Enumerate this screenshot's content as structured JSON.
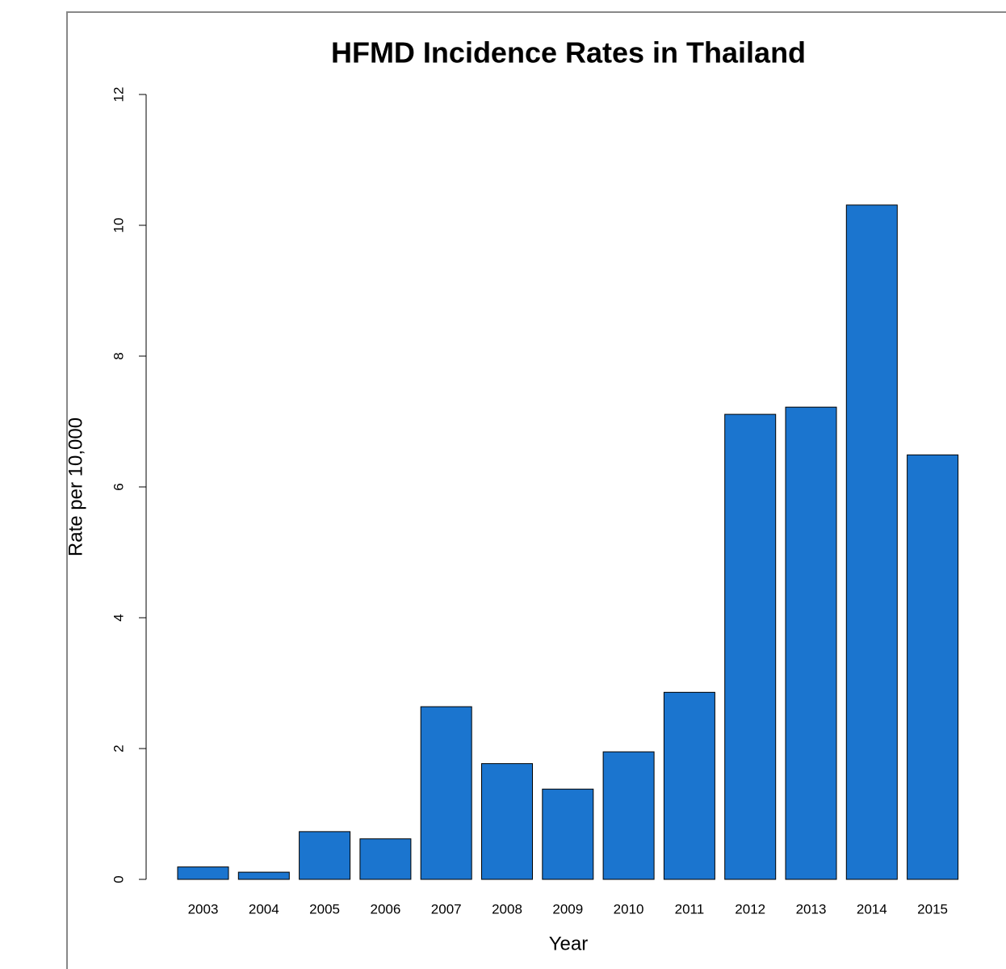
{
  "chart_data": {
    "type": "bar",
    "title": "HFMD Incidence Rates in Thailand",
    "x_label": "Year",
    "y_label": "Rate per 10,000",
    "categories": [
      "2003",
      "2004",
      "2005",
      "2006",
      "2007",
      "2008",
      "2009",
      "2010",
      "2011",
      "2012",
      "2013",
      "2014",
      "2015"
    ],
    "values": [
      0.19,
      0.11,
      0.73,
      0.62,
      2.64,
      1.77,
      1.38,
      1.95,
      2.86,
      7.11,
      7.22,
      10.31,
      6.49
    ],
    "color": "#1b75cf",
    "ylim": [
      0,
      12
    ],
    "yticks": [
      0,
      2,
      4,
      6,
      8,
      10,
      12
    ]
  }
}
